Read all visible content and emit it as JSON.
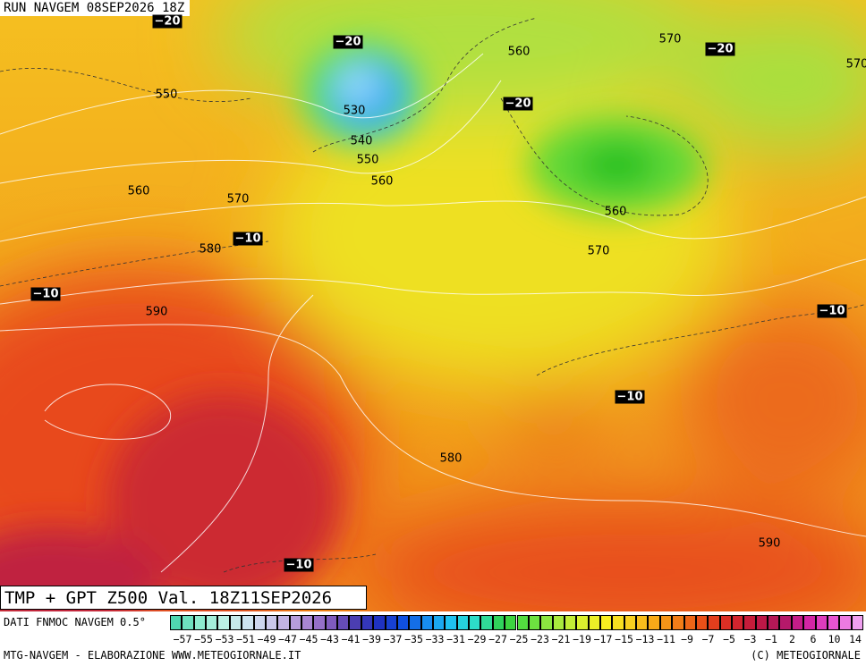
{
  "header": {
    "title": "RUN NAVGEM 08SEP2026 18Z"
  },
  "map": {
    "labels": [
      "−20",
      "−20",
      "570",
      "−20",
      "560",
      "570",
      "550",
      "530",
      "−20",
      "540",
      "550",
      "560",
      "560",
      "570",
      "560",
      "−10",
      "580",
      "570",
      "−10",
      "590",
      "−10",
      "−10",
      "580",
      "590",
      "−10"
    ]
  },
  "footer": {
    "title": "TMP + GPT Z500 Val. 18Z11SEP2026",
    "source": "DATI FNMOC NAVGEM 0.5°",
    "credit": "MTG-NAVGEM - ELABORAZIONE WWW.METEOGIORNALE.IT",
    "copyright": "(C) METEOGIORNALE"
  },
  "colorbar": {
    "labels": [
      "−57",
      "−55",
      "−53",
      "−51",
      "−49",
      "−47",
      "−45",
      "−43",
      "−41",
      "−39",
      "−37",
      "−35",
      "−33",
      "−31",
      "−29",
      "−27",
      "−25",
      "−23",
      "−21",
      "−19",
      "−17",
      "−15",
      "−13",
      "−11",
      "−9",
      "−7",
      "−5",
      "−3",
      "−1",
      "2",
      "6",
      "10",
      "14"
    ]
  }
}
